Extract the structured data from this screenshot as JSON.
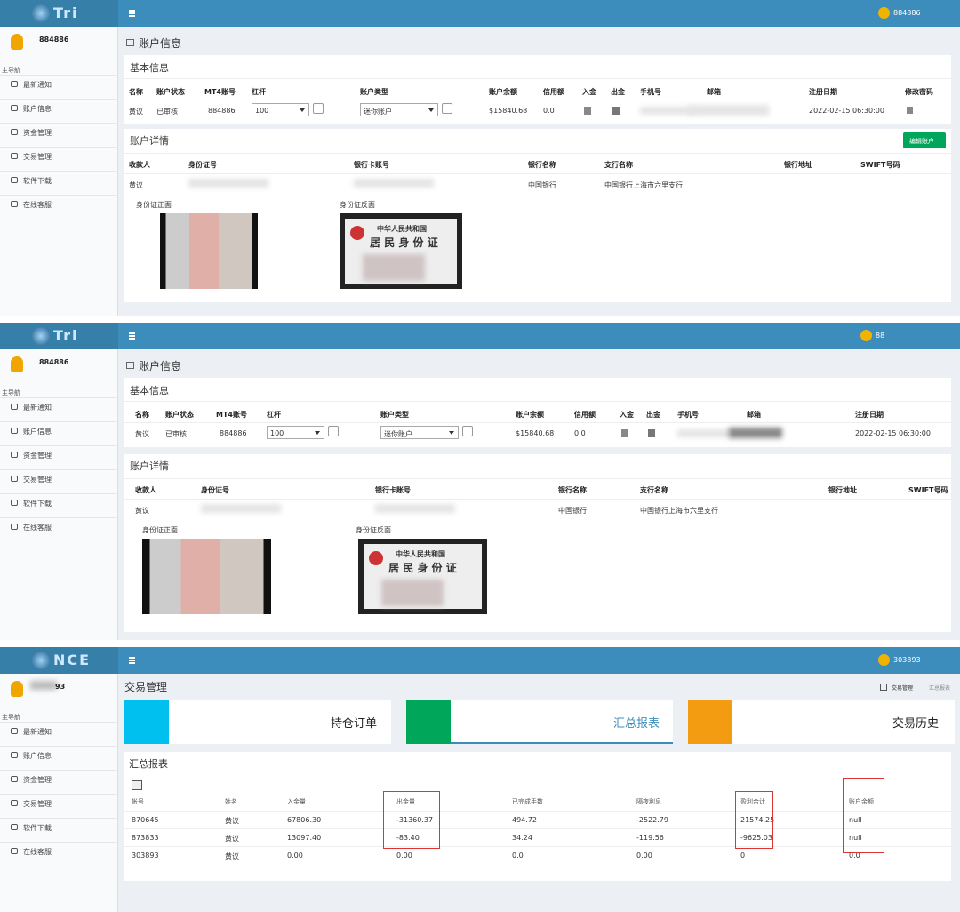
{
  "panels": [
    {
      "logo": "Tri",
      "topbar_user": "884886",
      "sidebar": {
        "user": "884886",
        "nav_title": "主导航",
        "items": [
          "最新通知",
          "账户信息",
          "资金管理",
          "交易管理",
          "软件下载",
          "在线客服"
        ]
      },
      "page_title": "账户信息",
      "basic": {
        "title": "基本信息",
        "headers": [
          "名称",
          "账户状态",
          "MT4账号",
          "杠杆",
          "账户类型",
          "账户余额",
          "信用额",
          "入金",
          "出金",
          "手机号",
          "邮箱",
          "注册日期",
          "修改密码"
        ],
        "name": "黄议",
        "status": "已审核",
        "mt4": "884886",
        "leverage": "100",
        "account_type": "迷你账户",
        "balance": "$15840.68",
        "credit": "0.0",
        "reg_date": "2022-02-15 06:30:00"
      },
      "details": {
        "title": "账户详情",
        "button": "编辑账户",
        "headers": [
          "收款人",
          "身份证号",
          "银行卡账号",
          "银行名称",
          "支行名称",
          "银行地址",
          "SWIFT号码"
        ],
        "payee": "黄议",
        "bank": "中国银行",
        "branch": "中国银行上海市六里支行",
        "id_front": "身份证正面",
        "id_back": "身份证反面",
        "card": [
          "中华人民共和国",
          "居 民 身 份 证"
        ]
      }
    },
    {
      "logo": "Tri",
      "topbar_user": "88",
      "sidebar": {
        "user": "884886",
        "nav_title": "主导航",
        "items": [
          "最新通知",
          "账户信息",
          "资金管理",
          "交易管理",
          "软件下载",
          "在线客服"
        ]
      },
      "page_title": "账户信息",
      "basic": {
        "title": "基本信息",
        "headers": [
          "名称",
          "账户状态",
          "MT4账号",
          "杠杆",
          "账户类型",
          "账户余额",
          "信用额",
          "入金",
          "出金",
          "手机号",
          "邮箱",
          "注册日期"
        ],
        "name": "黄议",
        "status": "已审核",
        "mt4": "884886",
        "leverage": "100",
        "account_type": "迷你账户",
        "balance": "$15840.68",
        "credit": "0.0",
        "reg_date": "2022-02-15 06:30:00"
      },
      "details": {
        "title": "账户详情",
        "headers": [
          "收款人",
          "身份证号",
          "银行卡账号",
          "银行名称",
          "支行名称",
          "银行地址",
          "SWIFT号码"
        ],
        "payee": "黄议",
        "bank": "中国银行",
        "branch": "中国银行上海市六里支行",
        "id_front": "身份证正面",
        "id_back": "身份证反面",
        "card": [
          "中华人民共和国",
          "居 民 身 份 证"
        ]
      }
    },
    {
      "logo": "NCE",
      "topbar_user": "303893",
      "sidebar": {
        "user": "93",
        "nav_title": "主导航",
        "items": [
          "最新通知",
          "账户信息",
          "资金管理",
          "交易管理",
          "软件下载",
          "在线客服"
        ]
      },
      "page_title": "交易管理",
      "breadcrumb": [
        "交易管理",
        "汇总报表"
      ],
      "tabs": [
        "持仓订单",
        "汇总报表",
        "交易历史"
      ],
      "report": {
        "title": "汇总报表",
        "headers": [
          "帐号",
          "姓名",
          "入金量",
          "出金量",
          "已完成手数",
          "隔夜利息",
          "盈利合计",
          "账户余额"
        ],
        "rows": [
          [
            "870645",
            "黄议",
            "67806.30",
            "-31360.37",
            "494.72",
            "-2522.79",
            "21574.25",
            "null"
          ],
          [
            "873833",
            "黄议",
            "13097.40",
            "-83.40",
            "34.24",
            "-119.56",
            "-9625.03",
            "null"
          ],
          [
            "303893",
            "黄议",
            "0.00",
            "0.00",
            "0.0",
            "0.00",
            "0",
            "0.0"
          ]
        ]
      }
    }
  ]
}
